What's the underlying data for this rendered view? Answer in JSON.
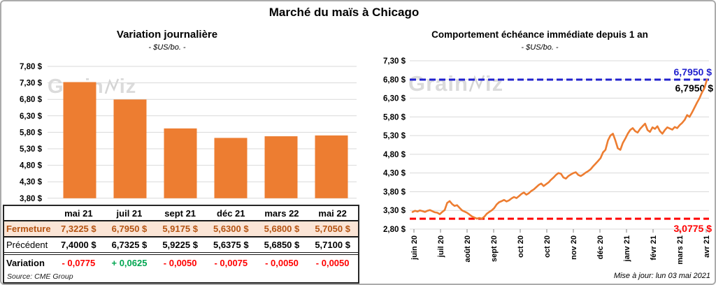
{
  "title": "Marché du maïs à Chicago",
  "watermark": {
    "prefix": "Grain",
    "suffix": "iz"
  },
  "colors": {
    "orange": "#ED7D31",
    "blue": "#2121CE",
    "red": "#FF0000",
    "green": "#00A651",
    "grid": "#D9D9D9",
    "fermeture_text": "#B45311",
    "fermeture_bg": "#FBE5D6"
  },
  "left_chart": {
    "title": "Variation journalière",
    "subtitle": "- $US/bo. -"
  },
  "right_chart": {
    "title": "Comportement échéance immédiate depuis 1 an",
    "subtitle": "- $US/bo. -"
  },
  "price_table": {
    "columns": [
      "mai 21",
      "juil 21",
      "sept 21",
      "déc 21",
      "mars 22",
      "mai 22"
    ],
    "rows": [
      {
        "label": "Fermeture",
        "class": "fermeture",
        "values": [
          "7,3225 $",
          "6,7950 $",
          "5,9175 $",
          "5,6300 $",
          "5,6800 $",
          "5,7050 $"
        ]
      },
      {
        "label": "Précédent",
        "class": "precedent",
        "values": [
          "7,4000 $",
          "6,7325 $",
          "5,9225 $",
          "5,6375 $",
          "5,6850 $",
          "5,7100 $"
        ]
      },
      {
        "label": "Variation",
        "class": "variation",
        "values": [
          "- 0,0775",
          "+ 0,0625",
          "- 0,0050",
          "- 0,0075",
          "- 0,0050",
          "- 0,0050"
        ],
        "value_classes": [
          "neg",
          "pos",
          "neg",
          "neg",
          "neg",
          "neg"
        ]
      }
    ]
  },
  "source": "Source: CME Group",
  "updated": "Mise à jour: lun 03 mai 2021",
  "chart_data": [
    {
      "type": "bar",
      "title": "Variation journalière",
      "subtitle": "- $US/bo. -",
      "units": "$US/bo.",
      "categories": [
        "mai 21",
        "juil 21",
        "sept 21",
        "déc 21",
        "mars 22",
        "mai 22"
      ],
      "values": [
        7.3225,
        6.795,
        5.9175,
        5.63,
        5.68,
        5.705
      ],
      "ylim": [
        3.8,
        7.8
      ],
      "ytick_step": 0.5,
      "ytick_labels": [
        "7,80 $",
        "6,80 $",
        "6,30 $",
        "5,80 $",
        "5,30 $",
        "4,80 $",
        "4,30 $",
        "3,80 $",
        "7,30 $"
      ],
      "grid": true,
      "bar_color": "#ED7D31"
    },
    {
      "type": "line",
      "title": "Comportement échéance immédiate depuis 1 an",
      "subtitle": "- $US/bo. -",
      "units": "$US/bo.",
      "ylim": [
        2.8,
        7.3
      ],
      "ytick_step": 0.5,
      "ytick_labels": [
        "7,30 $",
        "6,80 $",
        "6,30 $",
        "5,80 $",
        "5,30 $",
        "4,80 $",
        "4,30 $",
        "3,80 $",
        "3,30 $",
        "2,80 $"
      ],
      "x_ticklabels": [
        "juin 20",
        "juil 20",
        "août 20",
        "sept 20",
        "oct 20",
        "oct 20",
        "nov 20",
        "déc 20",
        "janv 21",
        "févr 21",
        "mars 21",
        "avr 21"
      ],
      "series": [
        {
          "name": "échéance immédiate",
          "color": "#ED7D31",
          "values": [
            3.26,
            3.29,
            3.27,
            3.3,
            3.28,
            3.26,
            3.29,
            3.31,
            3.28,
            3.25,
            3.24,
            3.2,
            3.26,
            3.31,
            3.5,
            3.55,
            3.47,
            3.42,
            3.44,
            3.37,
            3.3,
            3.27,
            3.24,
            3.19,
            3.14,
            3.11,
            3.08,
            3.1,
            3.08,
            3.13,
            3.21,
            3.26,
            3.3,
            3.36,
            3.46,
            3.52,
            3.55,
            3.58,
            3.54,
            3.57,
            3.62,
            3.66,
            3.63,
            3.68,
            3.74,
            3.78,
            3.72,
            3.76,
            3.82,
            3.86,
            3.92,
            3.98,
            4.02,
            3.95,
            4.0,
            4.05,
            4.12,
            4.18,
            4.25,
            4.3,
            4.28,
            4.18,
            4.15,
            4.22,
            4.26,
            4.3,
            4.32,
            4.25,
            4.22,
            4.26,
            4.31,
            4.35,
            4.4,
            4.48,
            4.55,
            4.62,
            4.7,
            4.85,
            4.92,
            5.17,
            5.3,
            5.35,
            5.17,
            4.96,
            4.92,
            5.1,
            5.22,
            5.35,
            5.45,
            5.5,
            5.42,
            5.38,
            5.48,
            5.55,
            5.62,
            5.45,
            5.4,
            5.52,
            5.48,
            5.55,
            5.42,
            5.35,
            5.45,
            5.52,
            5.49,
            5.46,
            5.53,
            5.5,
            5.58,
            5.64,
            5.72,
            5.85,
            5.8,
            5.92,
            6.05,
            6.18,
            6.3,
            6.45,
            6.57,
            6.795
          ]
        }
      ],
      "ref_lines": [
        {
          "name": "high",
          "value": 6.795,
          "label": "6,7950 $",
          "color": "#2121CE",
          "style": "dashed"
        },
        {
          "name": "low",
          "value": 3.0775,
          "label": "3,0775 $",
          "color": "#FF0000",
          "style": "dashed"
        }
      ],
      "last_value_label": "6,7950 $",
      "legend": "none",
      "grid": true
    }
  ]
}
